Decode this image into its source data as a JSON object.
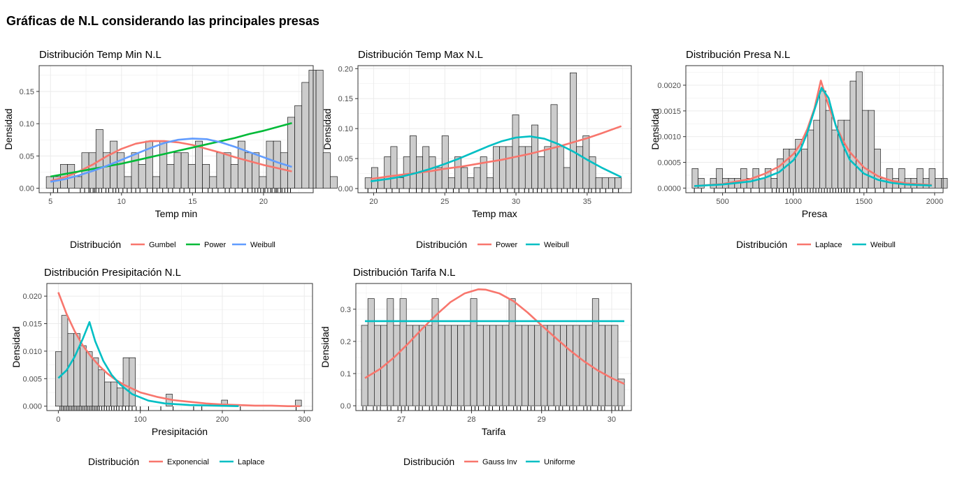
{
  "page": {
    "title": "Gráficas de N.L considerando las principales presas"
  },
  "colors": {
    "red": "#F8766D",
    "green": "#00BA38",
    "blue": "#619CFF",
    "teal": "#00BFC4",
    "bar_fill": "#CCCCCC",
    "grid": "#EBEBEB"
  },
  "chart_data": [
    {
      "id": "tmin",
      "type": "bar",
      "title": "Distribución Temp Min N.L",
      "xlabel": "Temp min",
      "ylabel": "Densidad",
      "xlim": [
        4.2,
        23.5
      ],
      "ylim": [
        -0.007,
        0.19
      ],
      "xticks": [
        5,
        10,
        15,
        20
      ],
      "xtick_labels": [
        "5",
        "10",
        "15",
        "20"
      ],
      "yticks": [
        0,
        0.05,
        0.1,
        0.15
      ],
      "ytick_labels": [
        "0.00",
        "0.05",
        "0.10",
        "0.15"
      ],
      "bins": {
        "start": 4.7,
        "width": 0.5,
        "values": [
          0.018,
          0.018,
          0.037,
          0.037,
          0.018,
          0.055,
          0.055,
          0.091,
          0.055,
          0.073,
          0.055,
          0.018,
          0.055,
          0.037,
          0.073,
          0.018,
          0.073,
          0.037,
          0.055,
          0.055,
          0.037,
          0.073,
          0.037,
          0.018,
          0.055,
          0.055,
          0.037,
          0.073,
          0.055,
          0.055,
          0.018,
          0.073,
          0.073,
          0.055,
          0.11,
          0.128,
          0.164,
          0.183,
          0.183,
          0.055,
          0.018
        ]
      },
      "rug": [
        5.2,
        5.5,
        6.3,
        7.1,
        7.4,
        7.7,
        7.8,
        8.0,
        8.1,
        8.2,
        8.4,
        8.6,
        8.9,
        9.1,
        9.4,
        9.6,
        9.8,
        10.1,
        10.4,
        10.7,
        11.0,
        11.3,
        11.8,
        12.2,
        12.5,
        12.9,
        13.3,
        13.6,
        14.1,
        14.4,
        14.8,
        15.2,
        15.7,
        16.1,
        16.4,
        16.8,
        17.3,
        17.6,
        18.0,
        18.5,
        18.9,
        19.2,
        19.4,
        19.6,
        19.8,
        20.0,
        20.1,
        20.3,
        20.5,
        20.6,
        20.8,
        20.9,
        21.0,
        21.2,
        21.3,
        21.5,
        21.7,
        21.9
      ],
      "legend_title": "Distribución",
      "series": [
        {
          "name": "Gumbel",
          "color": "#F8766D",
          "x": [
            5,
            6,
            7,
            8,
            9,
            10,
            11,
            12,
            13,
            14,
            15,
            16,
            17,
            18,
            19,
            20,
            21,
            22
          ],
          "y": [
            0.011,
            0.017,
            0.026,
            0.037,
            0.05,
            0.061,
            0.069,
            0.073,
            0.073,
            0.071,
            0.067,
            0.061,
            0.055,
            0.048,
            0.042,
            0.036,
            0.031,
            0.026
          ]
        },
        {
          "name": "Power",
          "color": "#00BA38",
          "x": [
            5,
            6,
            7,
            8,
            9,
            10,
            11,
            12,
            13,
            14,
            15,
            16,
            17,
            18,
            19,
            20,
            21,
            22
          ],
          "y": [
            0.018,
            0.022,
            0.026,
            0.03,
            0.034,
            0.038,
            0.043,
            0.048,
            0.053,
            0.058,
            0.063,
            0.068,
            0.073,
            0.078,
            0.084,
            0.089,
            0.095,
            0.101
          ]
        },
        {
          "name": "Weibull",
          "color": "#619CFF",
          "x": [
            5,
            6,
            7,
            8,
            9,
            10,
            11,
            12,
            13,
            14,
            15,
            16,
            17,
            18,
            19,
            20,
            21,
            22
          ],
          "y": [
            0.01,
            0.014,
            0.02,
            0.027,
            0.035,
            0.044,
            0.053,
            0.062,
            0.07,
            0.075,
            0.077,
            0.076,
            0.071,
            0.064,
            0.056,
            0.048,
            0.04,
            0.033
          ]
        }
      ]
    },
    {
      "id": "tmax",
      "type": "bar",
      "title": "Distribución Temp Max N.L",
      "xlabel": "Temp max",
      "ylabel": "Densidad",
      "xlim": [
        18.9,
        38.1
      ],
      "ylim": [
        -0.007,
        0.205
      ],
      "xticks": [
        20,
        25,
        30,
        35
      ],
      "xtick_labels": [
        "20",
        "25",
        "30",
        "35"
      ],
      "yticks": [
        0,
        0.05,
        0.1,
        0.15,
        0.2
      ],
      "ytick_labels": [
        "0.00",
        "0.05",
        "0.10",
        "0.15",
        "0.20"
      ],
      "bins": {
        "start": 19.4,
        "width": 0.45,
        "values": [
          0.018,
          0.035,
          0.018,
          0.053,
          0.07,
          0.018,
          0.053,
          0.088,
          0.053,
          0.07,
          0.053,
          0.035,
          0.088,
          0.018,
          0.053,
          0.035,
          0.018,
          0.035,
          0.053,
          0.018,
          0.07,
          0.07,
          0.07,
          0.123,
          0.07,
          0.07,
          0.106,
          0.053,
          0.07,
          0.14,
          0.07,
          0.035,
          0.193,
          0.07,
          0.088,
          0.053,
          0.018,
          0.018,
          0.018,
          0.018
        ]
      },
      "rug": [
        19.6,
        20.2,
        20.9,
        21.3,
        21.8,
        22.5,
        23.0,
        23.4,
        23.9,
        24.4,
        25.1,
        25.6,
        26.0,
        26.7,
        27.3,
        27.9,
        28.4,
        28.9,
        29.4,
        29.9,
        30.2,
        30.6,
        30.9,
        31.2,
        31.5,
        31.8,
        32.2,
        32.5,
        32.9,
        33.2,
        33.6,
        34.0,
        34.4,
        34.8,
        35.1,
        35.3,
        35.6,
        35.9,
        36.3,
        36.8,
        37.2
      ],
      "legend_title": "Distribución",
      "series": [
        {
          "name": "Power",
          "color": "#F8766D",
          "x": [
            19.8,
            21,
            22,
            23,
            24,
            25,
            26,
            27,
            28,
            29,
            30,
            31,
            32,
            33,
            34,
            35,
            36,
            37.4
          ],
          "y": [
            0.016,
            0.02,
            0.023,
            0.026,
            0.029,
            0.033,
            0.036,
            0.04,
            0.044,
            0.048,
            0.053,
            0.058,
            0.064,
            0.07,
            0.077,
            0.084,
            0.092,
            0.104
          ]
        },
        {
          "name": "Weibull",
          "color": "#00BFC4",
          "x": [
            19.8,
            21,
            22,
            23,
            24,
            25,
            26,
            27,
            28,
            29,
            30,
            31,
            32,
            33,
            34,
            35,
            36,
            37.4
          ],
          "y": [
            0.012,
            0.016,
            0.02,
            0.026,
            0.033,
            0.041,
            0.05,
            0.06,
            0.07,
            0.079,
            0.085,
            0.087,
            0.083,
            0.074,
            0.062,
            0.048,
            0.035,
            0.019
          ]
        }
      ]
    },
    {
      "id": "presa",
      "type": "bar",
      "title": "Distribución Presa N.L",
      "xlabel": "Presa",
      "ylabel": "Densidad",
      "xlim": [
        240,
        2060
      ],
      "ylim": [
        -9e-05,
        0.00238
      ],
      "xticks": [
        500,
        1000,
        1500,
        2000
      ],
      "xtick_labels": [
        "500",
        "1000",
        "1500",
        "2000"
      ],
      "yticks": [
        0,
        0.0005,
        0.001,
        0.0015,
        0.002
      ],
      "ytick_labels": [
        "0.0000",
        "0.0005",
        "0.0010",
        "0.0015",
        "0.0020"
      ],
      "bins": {
        "start": 284,
        "width": 43,
        "values": [
          0.00038,
          0.00019,
          0.0,
          0.00019,
          0.00038,
          0.00019,
          0.00019,
          0.00019,
          0.00038,
          0.00019,
          0.00038,
          0.00019,
          0.00038,
          0.00019,
          0.00057,
          0.00076,
          0.00076,
          0.00095,
          0.00076,
          0.00113,
          0.00132,
          0.00189,
          0.00151,
          0.00113,
          0.00132,
          0.00132,
          0.00208,
          0.00226,
          0.00151,
          0.00151,
          0.00076,
          0.00019,
          0.00038,
          0.00019,
          0.00038,
          0.00019,
          0.00019,
          0.00038,
          0.00019,
          0.00038,
          0.00019,
          0.00019
        ]
      },
      "rug": [
        300,
        350,
        440,
        520,
        600,
        650,
        700,
        760,
        800,
        850,
        880,
        900,
        930,
        960,
        980,
        1000,
        1020,
        1040,
        1060,
        1080,
        1100,
        1120,
        1140,
        1160,
        1180,
        1200,
        1220,
        1240,
        1260,
        1280,
        1300,
        1320,
        1340,
        1360,
        1380,
        1400,
        1430,
        1470,
        1520,
        1580,
        1640,
        1700,
        1760,
        1840
      ],
      "legend_title": "Distribución",
      "series": [
        {
          "name": "Laplace",
          "color": "#F8766D",
          "x": [
            300,
            500,
            700,
            800,
            900,
            1000,
            1050,
            1100,
            1150,
            1195,
            1250,
            1300,
            1350,
            1400,
            1500,
            1600,
            1700,
            1800,
            1980
          ],
          "y": [
            4e-05,
            8e-05,
            0.00018,
            0.00028,
            0.00042,
            0.00066,
            0.00085,
            0.00115,
            0.00155,
            0.00209,
            0.0016,
            0.00123,
            0.00093,
            0.0007,
            0.0004,
            0.00023,
            0.00014,
            9e-05,
            6e-05
          ]
        },
        {
          "name": "Weibull",
          "color": "#00BFC4",
          "x": [
            300,
            500,
            700,
            800,
            900,
            1000,
            1050,
            1100,
            1150,
            1200,
            1250,
            1300,
            1350,
            1400,
            1500,
            1600,
            1700,
            1800,
            1980
          ],
          "y": [
            4e-05,
            7e-05,
            0.00013,
            0.0002,
            0.00031,
            0.00054,
            0.00074,
            0.00108,
            0.00152,
            0.00195,
            0.00175,
            0.00122,
            0.00085,
            0.00055,
            0.00028,
            0.00016,
            0.0001,
            7e-05,
            5e-05
          ]
        }
      ]
    },
    {
      "id": "prec",
      "type": "bar",
      "title": "Distribución Presipitación N.L",
      "xlabel": "Presipitación",
      "ylabel": "Densidad",
      "xlim": [
        -14,
        310
      ],
      "ylim": [
        -0.0008,
        0.0223
      ],
      "xticks": [
        0,
        100,
        200,
        300
      ],
      "xtick_labels": [
        "0",
        "100",
        "200",
        "300"
      ],
      "yticks": [
        0,
        0.005,
        0.01,
        0.015,
        0.02
      ],
      "ytick_labels": [
        "0.000",
        "0.005",
        "0.010",
        "0.015",
        "0.020"
      ],
      "bins": {
        "start": -3.5,
        "width": 7.5,
        "values": [
          0.0099,
          0.0165,
          0.0132,
          0.0132,
          0.011,
          0.0099,
          0.0088,
          0.0066,
          0.0044,
          0.0044,
          0.0033,
          0.0088,
          0.0088,
          0.0,
          0.0,
          0.0,
          0.0,
          0.0,
          0.0022,
          0.0,
          0.0,
          0.0,
          0.0,
          0.0,
          0.0,
          0.0,
          0.0,
          0.0011,
          0.0,
          0.0,
          0.0,
          0.0,
          0.0,
          0.0,
          0.0,
          0.0,
          0.0,
          0.0,
          0.0,
          0.0011
        ]
      },
      "rug": [
        2,
        4,
        6,
        8,
        10,
        12,
        14,
        16,
        18,
        20,
        22,
        24,
        26,
        28,
        30,
        32,
        34,
        36,
        38,
        40,
        42,
        44,
        46,
        48,
        50,
        53,
        56,
        59,
        62,
        65,
        68,
        71,
        74,
        78,
        82,
        86,
        90,
        95,
        100,
        110,
        125,
        140,
        165,
        175,
        222,
        290
      ],
      "legend_title": "Distribución",
      "series": [
        {
          "name": "Exponencial",
          "color": "#F8766D",
          "x": [
            0,
            10,
            20,
            30,
            40,
            50,
            60,
            70,
            80,
            100,
            120,
            140,
            160,
            180,
            200,
            220,
            240,
            260,
            280,
            295
          ],
          "y": [
            0.0207,
            0.0168,
            0.0136,
            0.011,
            0.009,
            0.0073,
            0.0059,
            0.0048,
            0.0039,
            0.0025,
            0.0017,
            0.0011,
            0.0008,
            0.0005,
            0.0003,
            0.0002,
            0.0001,
            0.0001,
            0.0,
            0.0
          ]
        },
        {
          "name": "Laplace",
          "color": "#00BFC4",
          "x": [
            0,
            10,
            20,
            30,
            38,
            45,
            55,
            65,
            75,
            90,
            110,
            130,
            160,
            190,
            220
          ],
          "y": [
            0.0051,
            0.0065,
            0.009,
            0.0123,
            0.0153,
            0.0118,
            0.0082,
            0.0057,
            0.004,
            0.0022,
            0.001,
            0.0005,
            0.0002,
            0.0001,
            0.0
          ]
        }
      ]
    },
    {
      "id": "tarifa",
      "type": "bar",
      "title": "Distribución Tarifa N.L",
      "xlabel": "Tarifa",
      "ylabel": "Densidad",
      "xlim": [
        26.35,
        30.28
      ],
      "ylim": [
        -0.015,
        0.38
      ],
      "xticks": [
        27,
        28,
        29,
        30
      ],
      "xtick_labels": [
        "27",
        "28",
        "29",
        "30"
      ],
      "yticks": [
        0,
        0.1,
        0.2,
        0.3
      ],
      "ytick_labels": [
        "0.0",
        "0.1",
        "0.2",
        "0.3"
      ],
      "bins": {
        "start": 26.43,
        "width": 0.0915,
        "values": [
          0.25,
          0.333,
          0.25,
          0.25,
          0.333,
          0.25,
          0.333,
          0.25,
          0.25,
          0.25,
          0.25,
          0.333,
          0.25,
          0.25,
          0.25,
          0.25,
          0.25,
          0.333,
          0.25,
          0.25,
          0.25,
          0.25,
          0.25,
          0.333,
          0.25,
          0.25,
          0.25,
          0.25,
          0.25,
          0.25,
          0.25,
          0.25,
          0.25,
          0.25,
          0.25,
          0.25,
          0.333,
          0.25,
          0.25,
          0.25,
          0.083
        ]
      },
      "rug": [
        26.45,
        26.5,
        26.6,
        26.65,
        26.7,
        26.8,
        26.85,
        26.95,
        27.0,
        27.05,
        27.1,
        27.2,
        27.25,
        27.3,
        27.4,
        27.45,
        27.5,
        27.6,
        27.65,
        27.7,
        27.8,
        27.85,
        27.9,
        28.0,
        28.05,
        28.1,
        28.2,
        28.25,
        28.3,
        28.4,
        28.45,
        28.5,
        28.6,
        28.65,
        28.7,
        28.8,
        28.85,
        28.9,
        29.0,
        29.05,
        29.1,
        29.2,
        29.25,
        29.3,
        29.4,
        29.45,
        29.5,
        29.6,
        29.65,
        29.7,
        29.8,
        29.85,
        29.9,
        30.0,
        30.05,
        30.1,
        30.15
      ],
      "legend_title": "Distribución",
      "series": [
        {
          "name": "Gauss Inv",
          "color": "#F8766D",
          "x": [
            26.48,
            26.7,
            26.9,
            27.1,
            27.3,
            27.5,
            27.7,
            27.9,
            28.1,
            28.2,
            28.4,
            28.6,
            28.8,
            29.0,
            29.2,
            29.4,
            29.6,
            29.8,
            30.0,
            30.18
          ],
          "y": [
            0.086,
            0.115,
            0.151,
            0.194,
            0.24,
            0.283,
            0.322,
            0.349,
            0.362,
            0.361,
            0.349,
            0.325,
            0.29,
            0.25,
            0.211,
            0.173,
            0.139,
            0.11,
            0.086,
            0.068
          ]
        },
        {
          "name": "Uniforme",
          "color": "#00BFC4",
          "x": [
            26.48,
            30.18
          ],
          "y": [
            0.263,
            0.263
          ]
        }
      ]
    }
  ]
}
